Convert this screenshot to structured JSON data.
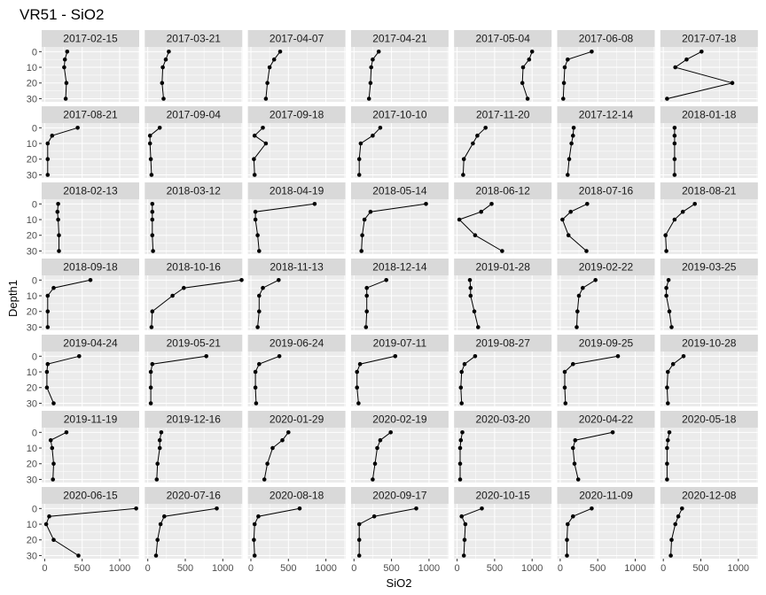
{
  "chart_data": {
    "type": "line",
    "title": "VR51  -  SiO2",
    "xlabel": "SiO2",
    "ylabel": "Depth1",
    "x_ticks": [
      0,
      500,
      1000
    ],
    "y_ticks": [
      0,
      10,
      20,
      30
    ],
    "xlim": [
      -40,
      1260
    ],
    "ylim": [
      32,
      -3
    ],
    "y_reversed": true,
    "grid": true,
    "colors": {
      "panel_bg": "#ebebeb",
      "strip_bg": "#d9d9d9",
      "grid": "#ffffff",
      "line": "#000000",
      "point": "#000000",
      "tick": "#333333"
    },
    "facets": [
      {
        "label": "2017-02-15",
        "points": [
          [
            300,
            0
          ],
          [
            270,
            5
          ],
          [
            260,
            10
          ],
          [
            290,
            20
          ],
          [
            280,
            30
          ]
        ]
      },
      {
        "label": "2017-03-21",
        "points": [
          [
            280,
            0
          ],
          [
            240,
            5
          ],
          [
            200,
            10
          ],
          [
            190,
            20
          ],
          [
            210,
            30
          ]
        ]
      },
      {
        "label": "2017-04-07",
        "points": [
          [
            390,
            0
          ],
          [
            310,
            5
          ],
          [
            250,
            10
          ],
          [
            220,
            20
          ],
          [
            200,
            30
          ]
        ]
      },
      {
        "label": "2017-04-21",
        "points": [
          [
            330,
            0
          ],
          [
            250,
            5
          ],
          [
            230,
            10
          ],
          [
            220,
            20
          ],
          [
            200,
            30
          ]
        ]
      },
      {
        "label": "2017-05-04",
        "points": [
          [
            1000,
            0
          ],
          [
            960,
            5
          ],
          [
            880,
            10
          ],
          [
            870,
            20
          ],
          [
            940,
            30
          ]
        ]
      },
      {
        "label": "2017-06-08",
        "points": [
          [
            420,
            0
          ],
          [
            100,
            5
          ],
          [
            60,
            10
          ],
          [
            50,
            20
          ],
          [
            40,
            30
          ]
        ]
      },
      {
        "label": "2017-07-18",
        "points": [
          [
            510,
            0
          ],
          [
            310,
            5
          ],
          [
            160,
            10
          ],
          [
            920,
            20
          ],
          [
            50,
            30
          ]
        ]
      },
      {
        "label": "2017-08-21",
        "points": [
          [
            440,
            0
          ],
          [
            100,
            5
          ],
          [
            40,
            10
          ],
          [
            40,
            20
          ],
          [
            40,
            30
          ]
        ]
      },
      {
        "label": "2017-09-04",
        "points": [
          [
            160,
            0
          ],
          [
            30,
            5
          ],
          [
            30,
            10
          ],
          [
            40,
            20
          ],
          [
            50,
            30
          ]
        ]
      },
      {
        "label": "2017-09-18",
        "points": [
          [
            160,
            0
          ],
          [
            50,
            5
          ],
          [
            200,
            10
          ],
          [
            40,
            20
          ],
          [
            50,
            30
          ]
        ]
      },
      {
        "label": "2017-10-10",
        "points": [
          [
            350,
            0
          ],
          [
            250,
            5
          ],
          [
            90,
            10
          ],
          [
            70,
            20
          ],
          [
            70,
            30
          ]
        ]
      },
      {
        "label": "2017-11-20",
        "points": [
          [
            380,
            0
          ],
          [
            270,
            5
          ],
          [
            210,
            10
          ],
          [
            90,
            20
          ],
          [
            80,
            30
          ]
        ]
      },
      {
        "label": "2017-12-14",
        "points": [
          [
            180,
            0
          ],
          [
            170,
            5
          ],
          [
            150,
            10
          ],
          [
            120,
            20
          ],
          [
            100,
            30
          ]
        ]
      },
      {
        "label": "2018-01-18",
        "points": [
          [
            150,
            0
          ],
          [
            150,
            5
          ],
          [
            150,
            10
          ],
          [
            150,
            20
          ],
          [
            150,
            30
          ]
        ]
      },
      {
        "label": "2018-02-13",
        "points": [
          [
            180,
            0
          ],
          [
            170,
            5
          ],
          [
            180,
            10
          ],
          [
            190,
            20
          ],
          [
            190,
            30
          ]
        ]
      },
      {
        "label": "2018-03-12",
        "points": [
          [
            60,
            0
          ],
          [
            60,
            5
          ],
          [
            60,
            10
          ],
          [
            60,
            20
          ],
          [
            70,
            30
          ]
        ]
      },
      {
        "label": "2018-04-19",
        "points": [
          [
            850,
            0
          ],
          [
            60,
            5
          ],
          [
            60,
            10
          ],
          [
            90,
            20
          ],
          [
            110,
            30
          ]
        ]
      },
      {
        "label": "2018-05-14",
        "points": [
          [
            960,
            0
          ],
          [
            220,
            5
          ],
          [
            140,
            10
          ],
          [
            110,
            20
          ],
          [
            100,
            30
          ]
        ]
      },
      {
        "label": "2018-06-12",
        "points": [
          [
            460,
            0
          ],
          [
            320,
            5
          ],
          [
            30,
            10
          ],
          [
            240,
            20
          ],
          [
            600,
            30
          ]
        ]
      },
      {
        "label": "2018-07-16",
        "points": [
          [
            360,
            0
          ],
          [
            140,
            5
          ],
          [
            30,
            10
          ],
          [
            110,
            20
          ],
          [
            350,
            30
          ]
        ]
      },
      {
        "label": "2018-08-21",
        "points": [
          [
            420,
            0
          ],
          [
            260,
            5
          ],
          [
            150,
            10
          ],
          [
            30,
            20
          ],
          [
            40,
            30
          ]
        ]
      },
      {
        "label": "2018-09-18",
        "points": [
          [
            610,
            0
          ],
          [
            120,
            5
          ],
          [
            40,
            10
          ],
          [
            40,
            20
          ],
          [
            40,
            30
          ]
        ]
      },
      {
        "label": "2018-10-16",
        "points": [
          [
            1250,
            0
          ],
          [
            480,
            5
          ],
          [
            330,
            10
          ],
          [
            60,
            20
          ],
          [
            50,
            30
          ]
        ]
      },
      {
        "label": "2018-11-13",
        "points": [
          [
            370,
            0
          ],
          [
            160,
            5
          ],
          [
            110,
            10
          ],
          [
            110,
            20
          ],
          [
            90,
            30
          ]
        ]
      },
      {
        "label": "2018-12-14",
        "points": [
          [
            430,
            0
          ],
          [
            170,
            5
          ],
          [
            170,
            10
          ],
          [
            170,
            20
          ],
          [
            160,
            30
          ]
        ]
      },
      {
        "label": "2019-01-28",
        "points": [
          [
            170,
            0
          ],
          [
            180,
            5
          ],
          [
            180,
            10
          ],
          [
            230,
            20
          ],
          [
            280,
            30
          ]
        ]
      },
      {
        "label": "2019-02-22",
        "points": [
          [
            470,
            0
          ],
          [
            300,
            5
          ],
          [
            250,
            10
          ],
          [
            230,
            20
          ],
          [
            220,
            30
          ]
        ]
      },
      {
        "label": "2019-03-25",
        "points": [
          [
            70,
            0
          ],
          [
            40,
            5
          ],
          [
            40,
            10
          ],
          [
            80,
            20
          ],
          [
            110,
            30
          ]
        ]
      },
      {
        "label": "2019-04-24",
        "points": [
          [
            460,
            0
          ],
          [
            40,
            5
          ],
          [
            30,
            10
          ],
          [
            30,
            20
          ],
          [
            120,
            30
          ]
        ]
      },
      {
        "label": "2019-05-21",
        "points": [
          [
            780,
            0
          ],
          [
            60,
            5
          ],
          [
            40,
            10
          ],
          [
            40,
            20
          ],
          [
            40,
            30
          ]
        ]
      },
      {
        "label": "2019-06-24",
        "points": [
          [
            380,
            0
          ],
          [
            110,
            5
          ],
          [
            60,
            10
          ],
          [
            60,
            20
          ],
          [
            70,
            30
          ]
        ]
      },
      {
        "label": "2019-07-11",
        "points": [
          [
            550,
            0
          ],
          [
            80,
            5
          ],
          [
            40,
            10
          ],
          [
            40,
            20
          ],
          [
            60,
            30
          ]
        ]
      },
      {
        "label": "2019-08-27",
        "points": [
          [
            240,
            0
          ],
          [
            100,
            5
          ],
          [
            60,
            10
          ],
          [
            50,
            20
          ],
          [
            60,
            30
          ]
        ]
      },
      {
        "label": "2019-09-25",
        "points": [
          [
            770,
            0
          ],
          [
            170,
            5
          ],
          [
            60,
            10
          ],
          [
            60,
            20
          ],
          [
            70,
            30
          ]
        ]
      },
      {
        "label": "2019-10-28",
        "points": [
          [
            270,
            0
          ],
          [
            130,
            5
          ],
          [
            60,
            10
          ],
          [
            50,
            20
          ],
          [
            60,
            30
          ]
        ]
      },
      {
        "label": "2019-11-19",
        "points": [
          [
            290,
            0
          ],
          [
            80,
            5
          ],
          [
            100,
            10
          ],
          [
            120,
            20
          ],
          [
            110,
            30
          ]
        ]
      },
      {
        "label": "2019-12-16",
        "points": [
          [
            180,
            0
          ],
          [
            160,
            5
          ],
          [
            160,
            10
          ],
          [
            130,
            20
          ],
          [
            120,
            30
          ]
        ]
      },
      {
        "label": "2020-01-29",
        "points": [
          [
            500,
            0
          ],
          [
            420,
            5
          ],
          [
            290,
            10
          ],
          [
            220,
            20
          ],
          [
            180,
            30
          ]
        ]
      },
      {
        "label": "2020-02-19",
        "points": [
          [
            490,
            0
          ],
          [
            350,
            5
          ],
          [
            310,
            10
          ],
          [
            280,
            20
          ],
          [
            250,
            30
          ]
        ]
      },
      {
        "label": "2020-03-20",
        "points": [
          [
            70,
            0
          ],
          [
            50,
            5
          ],
          [
            40,
            10
          ],
          [
            40,
            20
          ],
          [
            40,
            30
          ]
        ]
      },
      {
        "label": "2020-04-22",
        "points": [
          [
            700,
            0
          ],
          [
            200,
            5
          ],
          [
            170,
            10
          ],
          [
            190,
            20
          ],
          [
            240,
            30
          ]
        ]
      },
      {
        "label": "2020-05-18",
        "points": [
          [
            80,
            0
          ],
          [
            60,
            5
          ],
          [
            50,
            10
          ],
          [
            50,
            20
          ],
          [
            50,
            30
          ]
        ]
      },
      {
        "label": "2020-06-15",
        "points": [
          [
            1220,
            0
          ],
          [
            60,
            5
          ],
          [
            20,
            10
          ],
          [
            120,
            20
          ],
          [
            450,
            30
          ]
        ]
      },
      {
        "label": "2020-07-16",
        "points": [
          [
            920,
            0
          ],
          [
            220,
            5
          ],
          [
            170,
            10
          ],
          [
            130,
            20
          ],
          [
            110,
            30
          ]
        ]
      },
      {
        "label": "2020-08-18",
        "points": [
          [
            650,
            0
          ],
          [
            100,
            5
          ],
          [
            50,
            10
          ],
          [
            40,
            20
          ],
          [
            50,
            30
          ]
        ]
      },
      {
        "label": "2020-09-17",
        "points": [
          [
            830,
            0
          ],
          [
            270,
            5
          ],
          [
            70,
            10
          ],
          [
            70,
            20
          ],
          [
            70,
            30
          ]
        ]
      },
      {
        "label": "2020-10-15",
        "points": [
          [
            330,
            0
          ],
          [
            60,
            5
          ],
          [
            110,
            10
          ],
          [
            100,
            20
          ],
          [
            90,
            30
          ]
        ]
      },
      {
        "label": "2020-11-09",
        "points": [
          [
            420,
            0
          ],
          [
            170,
            5
          ],
          [
            100,
            10
          ],
          [
            90,
            20
          ],
          [
            90,
            30
          ]
        ]
      },
      {
        "label": "2020-12-08",
        "points": [
          [
            250,
            0
          ],
          [
            200,
            5
          ],
          [
            160,
            10
          ],
          [
            110,
            20
          ],
          [
            100,
            30
          ]
        ]
      }
    ]
  }
}
